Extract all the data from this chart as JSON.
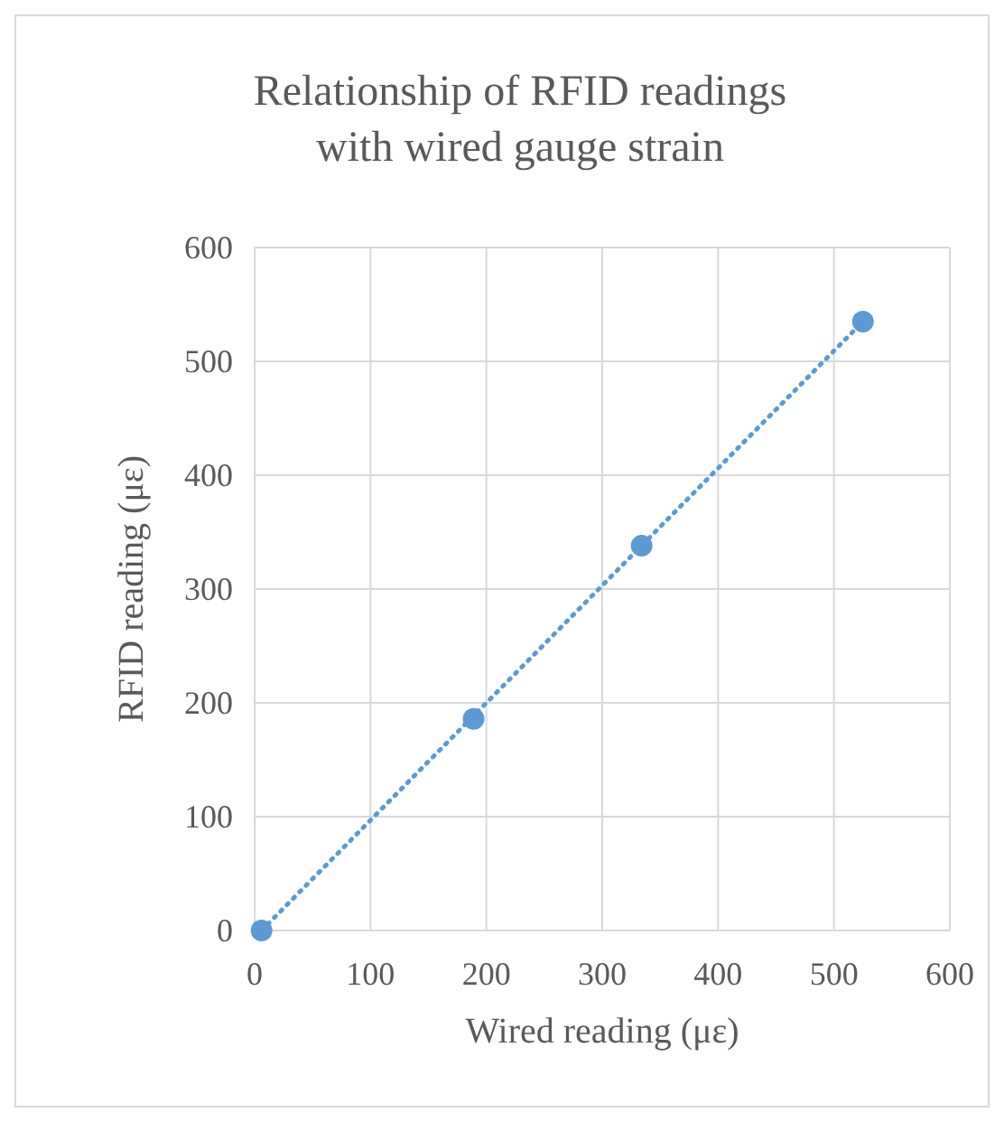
{
  "chart_data": {
    "type": "scatter",
    "title": "Relationship of RFID readings with wired gauge strain",
    "xlabel": "Wired reading (με)",
    "ylabel": "RFID reading (με)",
    "xlim": [
      0,
      600
    ],
    "xticks": [
      0,
      100,
      200,
      300,
      400,
      500,
      600
    ],
    "ylim": [
      0,
      600
    ],
    "yticks": [
      0,
      100,
      200,
      300,
      400,
      500,
      600
    ],
    "grid": true,
    "series": [
      {
        "color": "#5b9bd5",
        "marker": "circle",
        "x": [
          6,
          189,
          334,
          525
        ],
        "values": [
          0,
          186,
          338,
          535
        ]
      },
      {
        "type": "line",
        "color": "#5b9bd5",
        "line_style": "dotted",
        "marker": "none",
        "x": [
          6,
          525
        ],
        "values": [
          0,
          535
        ]
      }
    ]
  }
}
